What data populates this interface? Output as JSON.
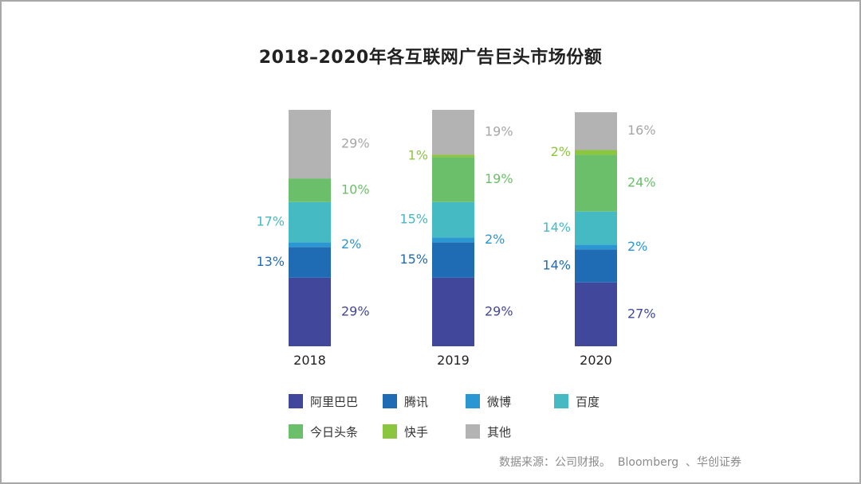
{
  "title": "2018–2020年各互联网广告巨头市场份额",
  "source": "数据来源：公司财报。  Bloomberg  、华创证券",
  "chart_data": {
    "type": "bar",
    "stacked": true,
    "title": "2018–2020年各互联网广告巨头市场份额",
    "categories": [
      "2018",
      "2019",
      "2020"
    ],
    "ylim": [
      0,
      100
    ],
    "grid": false,
    "legend_position": "bottom",
    "series": [
      {
        "name": "阿里巴巴",
        "color": "#41479b",
        "values": [
          29,
          29,
          27
        ],
        "labels": [
          "29%",
          "29%",
          "27%"
        ],
        "label_side": "right"
      },
      {
        "name": "腾讯",
        "color": "#1f6bb4",
        "values": [
          13,
          15,
          14
        ],
        "labels": [
          "13%",
          "15%",
          "14%"
        ],
        "label_side": "left"
      },
      {
        "name": "微博",
        "color": "#2b97d2",
        "values": [
          2,
          2,
          2
        ],
        "labels": [
          "2%",
          "2%",
          "2%"
        ],
        "label_side": "right"
      },
      {
        "name": "百度",
        "color": "#45bac3",
        "values": [
          17,
          15,
          14
        ],
        "labels": [
          "17%",
          "15%",
          "14%"
        ],
        "label_side": "left"
      },
      {
        "name": "今日头条",
        "color": "#6bbf6a",
        "values": [
          10,
          19,
          24
        ],
        "labels": [
          "10%",
          "19%",
          "24%"
        ],
        "label_side": "right"
      },
      {
        "name": "快手",
        "color": "#8cc63f",
        "values": [
          0,
          1,
          2
        ],
        "labels": [
          "",
          "1%",
          "2%"
        ],
        "label_side": "left"
      },
      {
        "name": "其他",
        "color": "#b3b3b3",
        "values": [
          29,
          19,
          16
        ],
        "labels": [
          "29%",
          "19%",
          "16%"
        ],
        "label_side": "right"
      }
    ]
  }
}
